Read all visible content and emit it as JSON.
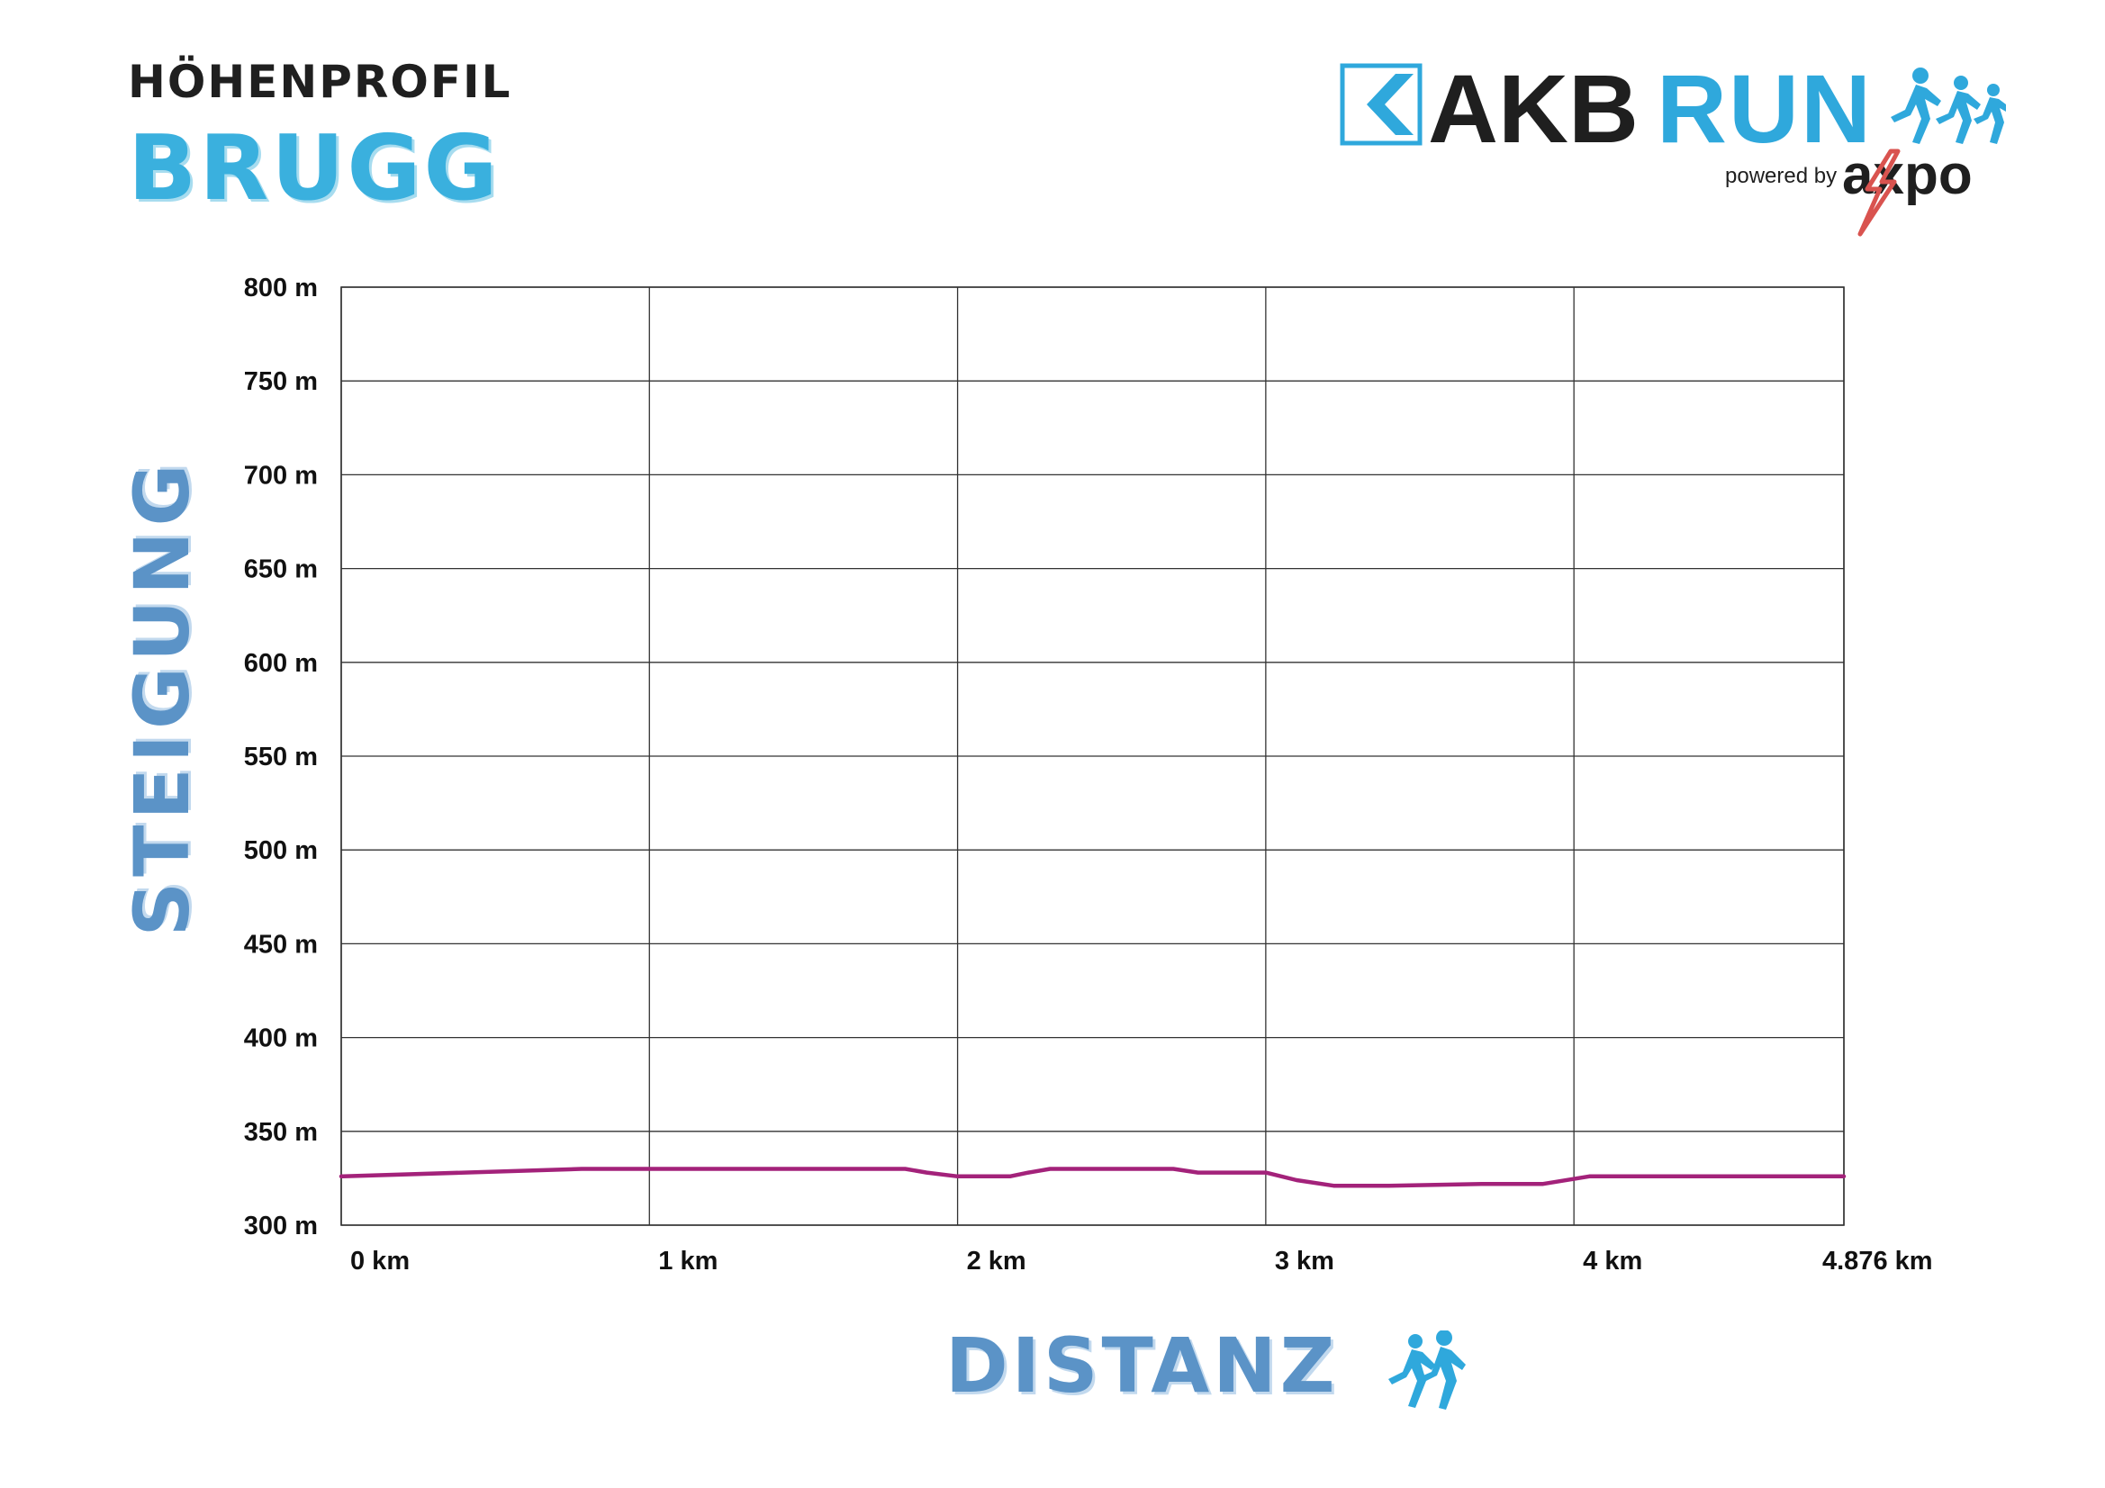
{
  "header": {
    "title": "HÖHENPROFIL",
    "subtitle": "BRUGG"
  },
  "logo": {
    "brand_part1": "AKB",
    "brand_part2": "RUN",
    "powered_by": "powered by",
    "sponsor": "axpo",
    "colors": {
      "akb_blue": "#2fa8dc",
      "dark": "#1f1f1f",
      "axpo_red": "#d9534f"
    }
  },
  "chart_data": {
    "type": "line",
    "xlabel": "DISTANZ",
    "ylabel": "STEIGUNG",
    "xlim": [
      0,
      4.876
    ],
    "ylim": [
      300,
      800
    ],
    "grid": true,
    "x_ticks": [
      0,
      1,
      2,
      3,
      4,
      4.876
    ],
    "x_tick_labels": [
      "0 km",
      "1 km",
      "2 km",
      "3 km",
      "4 km",
      "4.876 km"
    ],
    "y_ticks": [
      300,
      350,
      400,
      450,
      500,
      550,
      600,
      650,
      700,
      750,
      800
    ],
    "y_tick_labels": [
      "300 m",
      "350 m",
      "400 m",
      "450 m",
      "500 m",
      "550 m",
      "600 m",
      "650 m",
      "700 m",
      "750 m",
      "800 m"
    ],
    "series": [
      {
        "color": "#a3227a",
        "points": [
          [
            0,
            326
          ],
          [
            0.4,
            328
          ],
          [
            0.78,
            330
          ],
          [
            1.0,
            330
          ],
          [
            1.5,
            330
          ],
          [
            1.83,
            330
          ],
          [
            1.9,
            328
          ],
          [
            2.0,
            326
          ],
          [
            2.17,
            326
          ],
          [
            2.23,
            328
          ],
          [
            2.3,
            330
          ],
          [
            2.5,
            330
          ],
          [
            2.7,
            330
          ],
          [
            2.78,
            328
          ],
          [
            3.0,
            328
          ],
          [
            3.1,
            324
          ],
          [
            3.22,
            321
          ],
          [
            3.4,
            321
          ],
          [
            3.7,
            322
          ],
          [
            3.9,
            322
          ],
          [
            4.05,
            326
          ],
          [
            4.5,
            326
          ],
          [
            4.876,
            326
          ]
        ]
      }
    ]
  }
}
